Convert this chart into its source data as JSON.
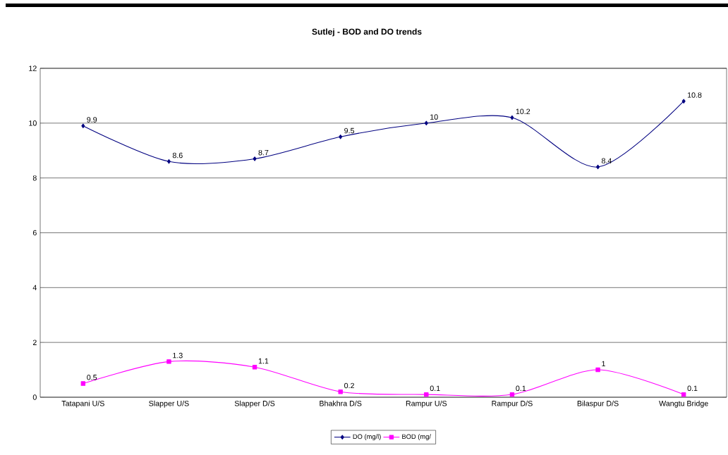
{
  "chart_data": {
    "type": "line",
    "title": "Sutlej - BOD and DO trends",
    "categories": [
      "Tatapani U/S",
      "Slapper U/S",
      "Slapper D/S",
      "Bhakhra D/S",
      "Rampur U/S",
      "Rampur D/S",
      "Bilaspur D/S",
      "Wangtu Bridge"
    ],
    "series": [
      {
        "name": "DO (mg/l)",
        "color": "#000080",
        "marker": "diamond",
        "values": [
          9.9,
          8.6,
          8.7,
          9.5,
          10,
          10.2,
          8.4,
          10.8
        ]
      },
      {
        "name": "BOD (mg/",
        "color": "#ff00ff",
        "marker": "square",
        "values": [
          0.5,
          1.3,
          1.1,
          0.2,
          0.1,
          0.1,
          1,
          0.1
        ]
      }
    ],
    "ylim": [
      0,
      12
    ],
    "yticks": [
      0,
      2,
      4,
      6,
      8,
      10,
      12
    ],
    "grid": "y",
    "legend": "bottom",
    "data_labels": true,
    "line_style": "solid"
  }
}
